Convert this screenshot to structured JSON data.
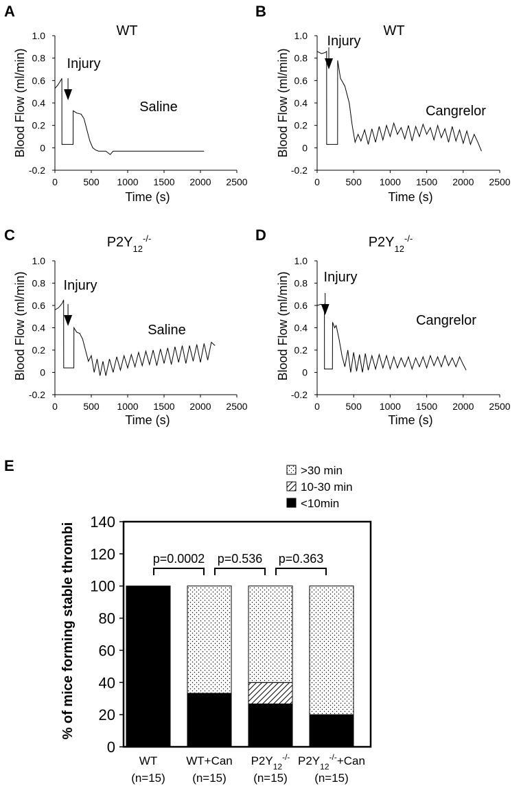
{
  "figure_note": "Blood flow traces and stable thrombus formation",
  "chart_data": [
    {
      "id": "A",
      "panel_letter": "A",
      "type": "line",
      "title": "WT",
      "title_sub": "",
      "title_sup": "",
      "xlabel": "Time (s)",
      "ylabel": "Blood Flow (ml/min)",
      "xlim": [
        0,
        2500
      ],
      "ylim": [
        -0.2,
        1.0
      ],
      "xticks": [
        0,
        500,
        1000,
        1500,
        2000,
        2500
      ],
      "yticks": [
        -0.2,
        0,
        0.2,
        0.4,
        0.6,
        0.8,
        1.0
      ],
      "ytick_labels": [
        "-0.2",
        "0",
        "0.2",
        "0.4",
        "0.6",
        "0.8",
        "1.0"
      ],
      "treatment_label": "Saline",
      "injury_label": "Injury",
      "injury_time": 180,
      "x": [
        0,
        40,
        80,
        95,
        96,
        150,
        220,
        250,
        251,
        300,
        360,
        400,
        440,
        480,
        520,
        560,
        600,
        700,
        760,
        800,
        1000,
        1500,
        2050
      ],
      "y": [
        0.53,
        0.56,
        0.6,
        0.62,
        0.03,
        0.03,
        0.03,
        0.03,
        0.33,
        0.31,
        0.3,
        0.26,
        0.16,
        0.06,
        0.0,
        -0.02,
        -0.03,
        -0.03,
        -0.06,
        -0.03,
        -0.03,
        -0.03,
        -0.03
      ]
    },
    {
      "id": "B",
      "panel_letter": "B",
      "type": "line",
      "title": "WT",
      "title_sub": "",
      "title_sup": "",
      "xlabel": "Time (s)",
      "ylabel": "Blood Flow (ml/min)",
      "xlim": [
        0,
        2500
      ],
      "ylim": [
        -0.2,
        1.0
      ],
      "xticks": [
        0,
        500,
        1000,
        1500,
        2000,
        2500
      ],
      "yticks": [
        -0.2,
        0,
        0.2,
        0.4,
        0.6,
        0.8,
        1.0
      ],
      "ytick_labels": [
        "-0.2",
        "0",
        "0.2",
        "0.4",
        "0.6",
        "0.8",
        "1.0"
      ],
      "treatment_label": "Cangrelor",
      "injury_label": "Injury",
      "injury_time": 160,
      "x": [
        0,
        60,
        110,
        130,
        131,
        200,
        260,
        280,
        281,
        320,
        380,
        440,
        480,
        520,
        560,
        600,
        650,
        700,
        750,
        800,
        850,
        900,
        950,
        1000,
        1050,
        1100,
        1150,
        1200,
        1250,
        1300,
        1350,
        1400,
        1450,
        1500,
        1550,
        1600,
        1650,
        1700,
        1750,
        1800,
        1850,
        1900,
        1950,
        2000,
        2050,
        2100,
        2150,
        2200,
        2250
      ],
      "y": [
        0.86,
        0.84,
        0.85,
        0.86,
        0.03,
        0.03,
        0.03,
        0.03,
        0.78,
        0.62,
        0.55,
        0.4,
        0.2,
        0.05,
        0.12,
        0.06,
        0.16,
        0.03,
        0.17,
        0.05,
        0.19,
        0.07,
        0.2,
        0.1,
        0.22,
        0.12,
        0.18,
        0.08,
        0.2,
        0.06,
        0.19,
        0.1,
        0.21,
        0.12,
        0.18,
        0.07,
        0.2,
        0.09,
        0.17,
        0.05,
        0.19,
        0.06,
        0.16,
        0.04,
        0.15,
        0.03,
        0.12,
        0.05,
        -0.03
      ]
    },
    {
      "id": "C",
      "panel_letter": "C",
      "type": "line",
      "title": "P2Y",
      "title_sub": "12",
      "title_sup": "-/-",
      "xlabel": "Time (s)",
      "ylabel": "Blood Flow (ml/min)",
      "xlim": [
        0,
        2500
      ],
      "ylim": [
        -0.2,
        1.0
      ],
      "xticks": [
        0,
        500,
        1000,
        1500,
        2000,
        2500
      ],
      "yticks": [
        -0.2,
        0,
        0.2,
        0.4,
        0.6,
        0.8,
        1.0
      ],
      "ytick_labels": [
        "-0.2",
        "0",
        "0.2",
        "0.4",
        "0.6",
        "0.8",
        "1.0"
      ],
      "treatment_label": "Saline",
      "injury_label": "Injury",
      "injury_time": 180,
      "x": [
        0,
        50,
        100,
        120,
        121,
        180,
        240,
        260,
        261,
        300,
        340,
        380,
        420,
        460,
        500,
        540,
        580,
        620,
        660,
        700,
        750,
        800,
        850,
        900,
        950,
        1000,
        1050,
        1100,
        1150,
        1200,
        1250,
        1300,
        1350,
        1400,
        1450,
        1500,
        1550,
        1600,
        1650,
        1700,
        1750,
        1800,
        1850,
        1900,
        1950,
        2000,
        2050,
        2100,
        2150,
        2200
      ],
      "y": [
        0.56,
        0.58,
        0.62,
        0.65,
        0.04,
        0.04,
        0.04,
        0.04,
        0.4,
        0.36,
        0.35,
        0.3,
        0.2,
        0.1,
        0.15,
        0.0,
        0.12,
        -0.03,
        0.1,
        -0.03,
        0.12,
        0.0,
        0.14,
        0.02,
        0.15,
        0.04,
        0.16,
        0.05,
        0.18,
        0.06,
        0.19,
        0.07,
        0.2,
        0.06,
        0.21,
        0.08,
        0.22,
        0.07,
        0.23,
        0.09,
        0.24,
        0.08,
        0.24,
        0.1,
        0.25,
        0.09,
        0.26,
        0.11,
        0.27,
        0.24
      ]
    },
    {
      "id": "D",
      "panel_letter": "D",
      "type": "line",
      "title": "P2Y",
      "title_sub": "12",
      "title_sup": "-/-",
      "xlabel": "Time (s)",
      "ylabel": "Blood Flow (ml/min)",
      "xlim": [
        0,
        2500
      ],
      "ylim": [
        -0.2,
        1.0
      ],
      "xticks": [
        0,
        500,
        1000,
        1500,
        2000,
        2500
      ],
      "yticks": [
        -0.2,
        0,
        0.2,
        0.4,
        0.6,
        0.8,
        1.0
      ],
      "ytick_labels": [
        "-0.2",
        "0",
        "0.2",
        "0.4",
        "0.6",
        "0.8",
        "1.0"
      ],
      "treatment_label": "Cangrelor",
      "injury_label": "Injury",
      "injury_time": 110,
      "x": [
        0,
        50,
        90,
        100,
        101,
        150,
        200,
        210,
        211,
        240,
        260,
        300,
        340,
        380,
        420,
        460,
        500,
        540,
        580,
        620,
        660,
        700,
        750,
        800,
        850,
        900,
        950,
        1000,
        1050,
        1100,
        1150,
        1200,
        1250,
        1300,
        1350,
        1400,
        1450,
        1500,
        1550,
        1600,
        1650,
        1700,
        1750,
        1800,
        1850,
        1900,
        1950,
        2000,
        2040
      ],
      "y": [
        0.6,
        0.61,
        0.6,
        0.61,
        0.03,
        0.03,
        0.03,
        0.03,
        0.45,
        0.4,
        0.42,
        0.3,
        0.15,
        0.05,
        0.2,
        0.0,
        0.18,
        0.01,
        0.16,
        0.0,
        0.17,
        0.02,
        0.15,
        0.03,
        0.16,
        0.04,
        0.15,
        0.03,
        0.14,
        0.04,
        0.13,
        0.05,
        0.14,
        0.03,
        0.13,
        0.05,
        0.14,
        0.04,
        0.15,
        0.06,
        0.14,
        0.05,
        0.15,
        0.06,
        0.13,
        0.05,
        0.14,
        0.07,
        0.02
      ]
    },
    {
      "id": "E",
      "panel_letter": "E",
      "type": "bar",
      "stacked": true,
      "ylabel": "% of mice forming stable thrombi",
      "ylim": [
        0,
        140
      ],
      "yticks": [
        0,
        20,
        40,
        60,
        80,
        100,
        120,
        140
      ],
      "categories": [
        {
          "main": "WT",
          "sup": "",
          "suffix": "",
          "n": "(n=15)"
        },
        {
          "main": "WT+Can",
          "sup": "",
          "suffix": "",
          "n": "(n=15)"
        },
        {
          "main": "P2Y",
          "sub": "12",
          "sup": "-/-",
          "suffix": "",
          "n": "(n=15)"
        },
        {
          "main": "P2Y",
          "sub": "12",
          "sup": "-/-",
          "suffix": "+Can",
          "n": "(n=15)"
        }
      ],
      "series": [
        {
          "name": "<10min",
          "pattern": "solid",
          "values": [
            100,
            33.3,
            26.7,
            20
          ]
        },
        {
          "name": "10-30 min",
          "pattern": "hatch",
          "values": [
            0,
            0,
            13.3,
            0
          ]
        },
        {
          "name": ">30 min",
          "pattern": "dots",
          "values": [
            0,
            66.7,
            60,
            80
          ]
        }
      ],
      "legend_order": [
        ">30 min",
        "10-30 min",
        "<10min"
      ],
      "annotations": [
        {
          "label": "p=0.0002",
          "from": 0,
          "to": 1
        },
        {
          "label": "p=0.536",
          "from": 1,
          "to": 2
        },
        {
          "label": "p=0.363",
          "from": 2,
          "to": 3
        }
      ]
    }
  ]
}
